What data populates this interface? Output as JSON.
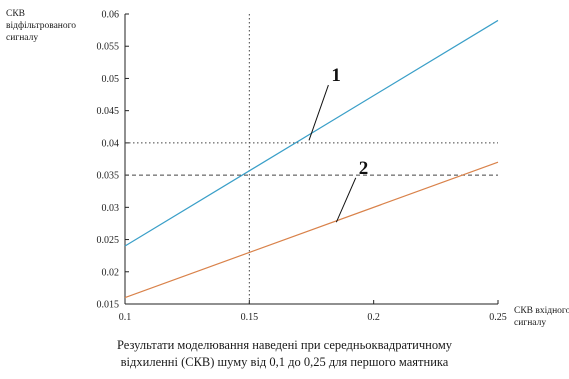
{
  "chart_data": {
    "type": "line",
    "ylabel_lines": [
      "СКВ",
      "відфільтрованого",
      "сигналу"
    ],
    "xlabel_lines": [
      "СКВ вхідного",
      "сигналу"
    ],
    "xlim": [
      0.1,
      0.25
    ],
    "ylim": [
      0.015,
      0.06
    ],
    "xticks": [
      0.1,
      0.15,
      0.2,
      0.25
    ],
    "xtick_labels": [
      "0.1",
      "0.15",
      "0.2",
      "0.25"
    ],
    "yticks": [
      0.015,
      0.02,
      0.025,
      0.03,
      0.035,
      0.04,
      0.045,
      0.05,
      0.055,
      0.06
    ],
    "ytick_labels": [
      "0.015",
      "0.02",
      "0.025",
      "0.03",
      "0.035",
      "0.04",
      "0.045",
      "0.05",
      "0.055",
      "0.06"
    ],
    "grid": false,
    "series": [
      {
        "label": "1",
        "color": "#3a9fc8",
        "x": [
          0.1,
          0.25
        ],
        "y": [
          0.024,
          0.059
        ]
      },
      {
        "label": "2",
        "color": "#d9824a",
        "x": [
          0.1,
          0.25
        ],
        "y": [
          0.016,
          0.037
        ]
      }
    ],
    "reference_lines": [
      {
        "orientation": "vertical",
        "value": 0.15,
        "style": "dotted",
        "ymax": 0.06
      },
      {
        "orientation": "horizontal",
        "value": 0.04,
        "style": "dotted",
        "xmax": 0.25
      },
      {
        "orientation": "horizontal",
        "value": 0.035,
        "style": "dashed",
        "xmax": 0.25
      }
    ],
    "annotations": [
      {
        "text": "1",
        "series": 0,
        "x_start": 0.174,
        "y_start": 0.0404,
        "x_text": 0.183,
        "y_text": 0.0496
      },
      {
        "text": "2",
        "series": 1,
        "x_start": 0.185,
        "y_start": 0.0277,
        "x_text": 0.194,
        "y_text": 0.0352
      }
    ]
  },
  "caption": {
    "line1": "Результати моделювання наведені при середньоквадратичному",
    "line2": "відхиленні (СКВ) шуму від 0,1 до 0,25 для першого маятника"
  }
}
